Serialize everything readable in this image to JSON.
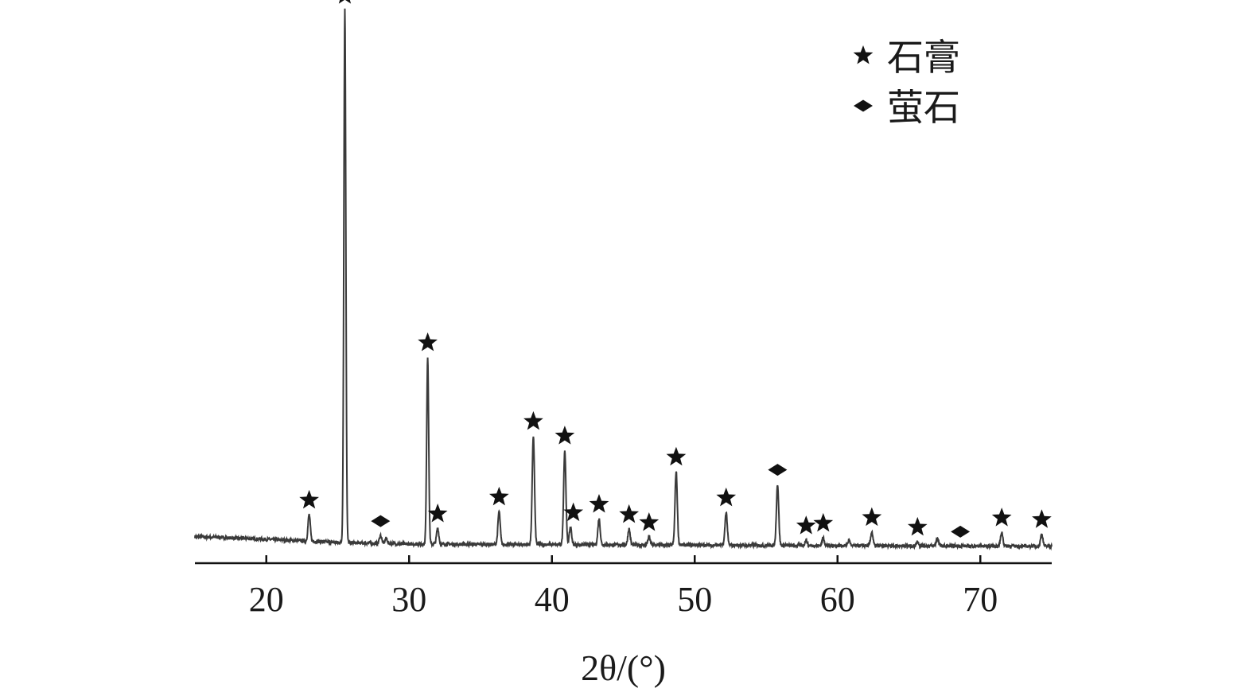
{
  "chart_data": {
    "type": "line",
    "xlabel": "2θ/(°)",
    "ylabel": "",
    "xlim": [
      15,
      75
    ],
    "xticks": [
      20,
      30,
      40,
      50,
      60,
      70
    ],
    "y_axis_shown": false,
    "grid": false,
    "legend_position": "top-right",
    "legend": [
      {
        "marker": "star",
        "label": "石膏"
      },
      {
        "marker": "diamond",
        "label": "萤石"
      }
    ],
    "baseline": [
      [
        15,
        0.023
      ],
      [
        20,
        0.018
      ],
      [
        25,
        0.012
      ],
      [
        30,
        0.009
      ],
      [
        40,
        0.008
      ],
      [
        50,
        0.007
      ],
      [
        60,
        0.006
      ],
      [
        75,
        0.005
      ]
    ],
    "peaks": [
      {
        "x": 23.0,
        "height": 0.05,
        "phase": "石膏"
      },
      {
        "x": 25.5,
        "height": 1.0,
        "phase": "石膏"
      },
      {
        "x": 28.0,
        "height": 0.015,
        "phase": "萤石"
      },
      {
        "x": 28.4,
        "height": 0.01,
        "phase": "萤石"
      },
      {
        "x": 31.3,
        "height": 0.351,
        "phase": "石膏"
      },
      {
        "x": 32.0,
        "height": 0.03,
        "phase": "石膏"
      },
      {
        "x": 36.3,
        "height": 0.062,
        "phase": "石膏"
      },
      {
        "x": 38.7,
        "height": 0.204,
        "phase": "石膏"
      },
      {
        "x": 40.9,
        "height": 0.177,
        "phase": "石膏"
      },
      {
        "x": 41.3,
        "height": 0.033,
        "phase": "石膏"
      },
      {
        "x": 43.3,
        "height": 0.049,
        "phase": "石膏"
      },
      {
        "x": 45.4,
        "height": 0.03,
        "phase": "石膏"
      },
      {
        "x": 46.8,
        "height": 0.015,
        "phase": "石膏"
      },
      {
        "x": 48.7,
        "height": 0.138,
        "phase": "石膏"
      },
      {
        "x": 52.2,
        "height": 0.062,
        "phase": "石膏"
      },
      {
        "x": 55.8,
        "height": 0.115,
        "phase": "萤石"
      },
      {
        "x": 57.8,
        "height": 0.01,
        "phase": "石膏"
      },
      {
        "x": 59.0,
        "height": 0.015,
        "phase": "石膏"
      },
      {
        "x": 60.8,
        "height": 0.01,
        "phase": null
      },
      {
        "x": 62.4,
        "height": 0.026,
        "phase": "石膏"
      },
      {
        "x": 65.6,
        "height": 0.008,
        "phase": "石膏"
      },
      {
        "x": 67.0,
        "height": 0.015,
        "phase": null
      },
      {
        "x": 71.5,
        "height": 0.026,
        "phase": "石膏"
      },
      {
        "x": 74.3,
        "height": 0.023,
        "phase": "石膏"
      }
    ],
    "annotations": [
      {
        "x": 23.0,
        "marker": "star"
      },
      {
        "x": 25.5,
        "marker": "star"
      },
      {
        "x": 28.0,
        "marker": "diamond"
      },
      {
        "x": 31.3,
        "marker": "star"
      },
      {
        "x": 32.0,
        "marker": "star"
      },
      {
        "x": 36.3,
        "marker": "star"
      },
      {
        "x": 38.7,
        "marker": "star"
      },
      {
        "x": 40.9,
        "marker": "star"
      },
      {
        "x": 41.5,
        "marker": "star"
      },
      {
        "x": 43.3,
        "marker": "star"
      },
      {
        "x": 45.4,
        "marker": "star"
      },
      {
        "x": 46.8,
        "marker": "star"
      },
      {
        "x": 48.7,
        "marker": "star"
      },
      {
        "x": 52.2,
        "marker": "star"
      },
      {
        "x": 55.8,
        "marker": "diamond"
      },
      {
        "x": 57.8,
        "marker": "star"
      },
      {
        "x": 59.0,
        "marker": "star"
      },
      {
        "x": 62.4,
        "marker": "star"
      },
      {
        "x": 65.6,
        "marker": "star"
      },
      {
        "x": 68.6,
        "marker": "diamond"
      },
      {
        "x": 71.5,
        "marker": "star"
      },
      {
        "x": 74.3,
        "marker": "star"
      }
    ],
    "colors": {
      "line": "#3a3a3a",
      "marker": "#111111",
      "axis": "#111111"
    }
  }
}
